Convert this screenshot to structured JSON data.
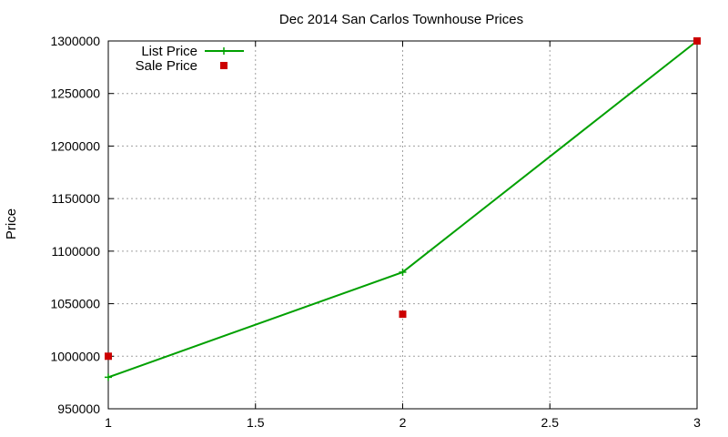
{
  "chart_data": {
    "type": "line",
    "title": "Dec 2014 San Carlos Townhouse Prices",
    "xlabel": "",
    "ylabel": "Price",
    "xlim": [
      1,
      3
    ],
    "ylim": [
      950000,
      1300000
    ],
    "xticks": [
      "1",
      "1.5",
      "2",
      "2.5",
      "3"
    ],
    "yticks": [
      "950000",
      "1000000",
      "1050000",
      "1100000",
      "1150000",
      "1200000",
      "1250000",
      "1300000"
    ],
    "grid": true,
    "legend_position": "top-left",
    "series": [
      {
        "name": "List Price",
        "style": "line-plus",
        "color": "#00a000",
        "x": [
          1,
          2,
          3
        ],
        "y": [
          980000,
          1080000,
          1300000
        ]
      },
      {
        "name": "Sale Price",
        "style": "square",
        "color": "#cc0000",
        "x": [
          1,
          2,
          3
        ],
        "y": [
          1000000,
          1040000,
          1300000
        ]
      }
    ]
  }
}
